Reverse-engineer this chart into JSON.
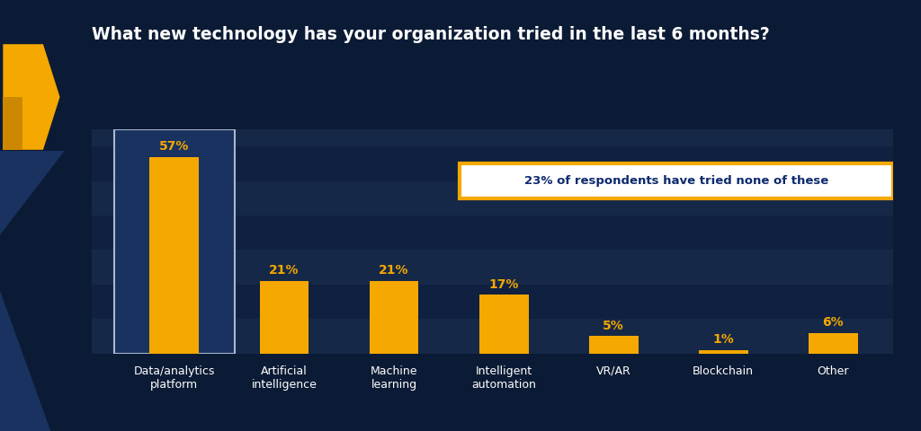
{
  "title": "What new technology has your organization tried in the last 6 months?",
  "categories": [
    "Data/analytics\nplatform",
    "Artificial\nintelligence",
    "Machine\nlearning",
    "Intelligent\nautomation",
    "VR/AR",
    "Blockchain",
    "Other"
  ],
  "values": [
    57,
    21,
    21,
    17,
    5,
    1,
    6
  ],
  "bar_color": "#F5A800",
  "bg_color": "#0C1B35",
  "stripe_color_dark": "#0F2040",
  "stripe_color_light": "#162847",
  "text_color_yellow": "#F5A800",
  "text_color_white": "#FFFFFF",
  "text_color_dark_blue": "#0D2A6E",
  "annotation_text": "23% of respondents have tried none of these",
  "annotation_box_color": "#FFFFFF",
  "annotation_border_color": "#F5A800",
  "first_bar_bg": "#1A3260",
  "first_bar_border": "#A8B8D0",
  "ylim": [
    0,
    65
  ],
  "title_fontsize": 13.5,
  "label_fontsize": 9,
  "value_fontsize": 10
}
